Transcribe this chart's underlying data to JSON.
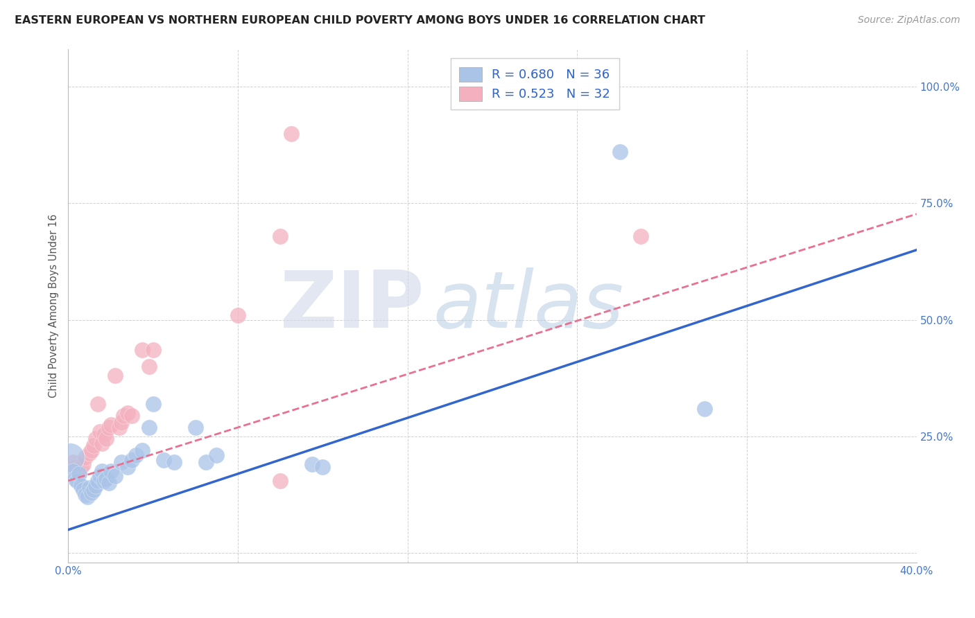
{
  "title": "EASTERN EUROPEAN VS NORTHERN EUROPEAN CHILD POVERTY AMONG BOYS UNDER 16 CORRELATION CHART",
  "source": "Source: ZipAtlas.com",
  "ylabel": "Child Poverty Among Boys Under 16",
  "xlim": [
    0.0,
    0.4
  ],
  "ylim": [
    -0.02,
    1.08
  ],
  "xticks": [
    0.0,
    0.08,
    0.16,
    0.24,
    0.32,
    0.4
  ],
  "xtick_labels": [
    "0.0%",
    "",
    "",
    "",
    "",
    "40.0%"
  ],
  "yticks": [
    0.0,
    0.25,
    0.5,
    0.75,
    1.0
  ],
  "ytick_labels_right": [
    "",
    "25.0%",
    "50.0%",
    "75.0%",
    "100.0%"
  ],
  "blue_R": 0.68,
  "blue_N": 36,
  "pink_R": 0.523,
  "pink_N": 32,
  "blue_color": "#aac4e8",
  "pink_color": "#f4b0be",
  "blue_line_color": "#3366cc",
  "pink_line_color": "#e87090",
  "watermark_zip": "ZIP",
  "watermark_atlas": "atlas",
  "background_color": "#ffffff",
  "blue_points": [
    [
      0.002,
      0.175
    ],
    [
      0.003,
      0.16
    ],
    [
      0.004,
      0.155
    ],
    [
      0.005,
      0.17
    ],
    [
      0.006,
      0.145
    ],
    [
      0.007,
      0.135
    ],
    [
      0.008,
      0.125
    ],
    [
      0.009,
      0.12
    ],
    [
      0.01,
      0.14
    ],
    [
      0.011,
      0.13
    ],
    [
      0.012,
      0.135
    ],
    [
      0.013,
      0.145
    ],
    [
      0.014,
      0.155
    ],
    [
      0.015,
      0.165
    ],
    [
      0.016,
      0.175
    ],
    [
      0.017,
      0.155
    ],
    [
      0.018,
      0.16
    ],
    [
      0.019,
      0.15
    ],
    [
      0.02,
      0.175
    ],
    [
      0.022,
      0.165
    ],
    [
      0.025,
      0.195
    ],
    [
      0.028,
      0.185
    ],
    [
      0.03,
      0.2
    ],
    [
      0.032,
      0.21
    ],
    [
      0.035,
      0.22
    ],
    [
      0.038,
      0.27
    ],
    [
      0.04,
      0.32
    ],
    [
      0.045,
      0.2
    ],
    [
      0.05,
      0.195
    ],
    [
      0.06,
      0.27
    ],
    [
      0.065,
      0.195
    ],
    [
      0.07,
      0.21
    ],
    [
      0.115,
      0.19
    ],
    [
      0.12,
      0.185
    ],
    [
      0.26,
      0.86
    ],
    [
      0.3,
      0.31
    ]
  ],
  "pink_points": [
    [
      0.002,
      0.195
    ],
    [
      0.003,
      0.185
    ],
    [
      0.004,
      0.18
    ],
    [
      0.005,
      0.175
    ],
    [
      0.006,
      0.185
    ],
    [
      0.007,
      0.19
    ],
    [
      0.008,
      0.205
    ],
    [
      0.01,
      0.215
    ],
    [
      0.011,
      0.22
    ],
    [
      0.012,
      0.23
    ],
    [
      0.013,
      0.245
    ],
    [
      0.014,
      0.32
    ],
    [
      0.015,
      0.26
    ],
    [
      0.016,
      0.235
    ],
    [
      0.017,
      0.255
    ],
    [
      0.018,
      0.245
    ],
    [
      0.019,
      0.27
    ],
    [
      0.02,
      0.275
    ],
    [
      0.022,
      0.38
    ],
    [
      0.024,
      0.27
    ],
    [
      0.025,
      0.28
    ],
    [
      0.026,
      0.295
    ],
    [
      0.028,
      0.3
    ],
    [
      0.03,
      0.295
    ],
    [
      0.035,
      0.435
    ],
    [
      0.038,
      0.4
    ],
    [
      0.04,
      0.435
    ],
    [
      0.08,
      0.51
    ],
    [
      0.1,
      0.155
    ],
    [
      0.1,
      0.68
    ],
    [
      0.27,
      0.68
    ],
    [
      0.105,
      0.9
    ]
  ],
  "title_fontsize": 11.5,
  "axis_label_fontsize": 10.5,
  "tick_fontsize": 11,
  "legend_fontsize": 13,
  "source_fontsize": 10
}
